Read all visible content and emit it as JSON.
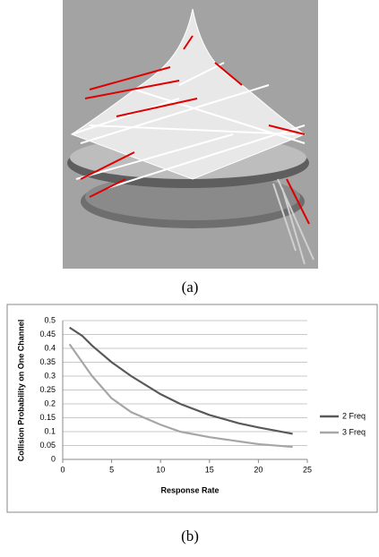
{
  "caption_a": "(a)",
  "caption_b": "(b)",
  "chart_data": {
    "type": "line",
    "xlabel": "Response Rate",
    "ylabel": "Collision Probability on One Channel",
    "x": [
      0.7,
      2,
      3,
      4,
      5,
      7,
      10,
      12,
      15,
      18,
      20,
      23.5
    ],
    "series": [
      {
        "name": "2 Freq",
        "color": "#595959",
        "values": [
          0.475,
          0.445,
          0.41,
          0.38,
          0.35,
          0.3,
          0.235,
          0.2,
          0.16,
          0.13,
          0.115,
          0.092
        ]
      },
      {
        "name": "3 Freq",
        "color": "#a6a6a6",
        "values": [
          0.415,
          0.35,
          0.3,
          0.26,
          0.22,
          0.17,
          0.125,
          0.1,
          0.08,
          0.065,
          0.055,
          0.045
        ]
      }
    ],
    "xlim": [
      0,
      25
    ],
    "xticks": [
      0,
      5,
      10,
      15,
      20,
      25
    ],
    "ylim": [
      0,
      0.5
    ],
    "yticks": [
      0,
      0.05,
      0.1,
      0.15,
      0.2,
      0.25,
      0.3,
      0.35,
      0.4,
      0.45,
      0.5
    ],
    "grid": true,
    "legend": "right"
  }
}
